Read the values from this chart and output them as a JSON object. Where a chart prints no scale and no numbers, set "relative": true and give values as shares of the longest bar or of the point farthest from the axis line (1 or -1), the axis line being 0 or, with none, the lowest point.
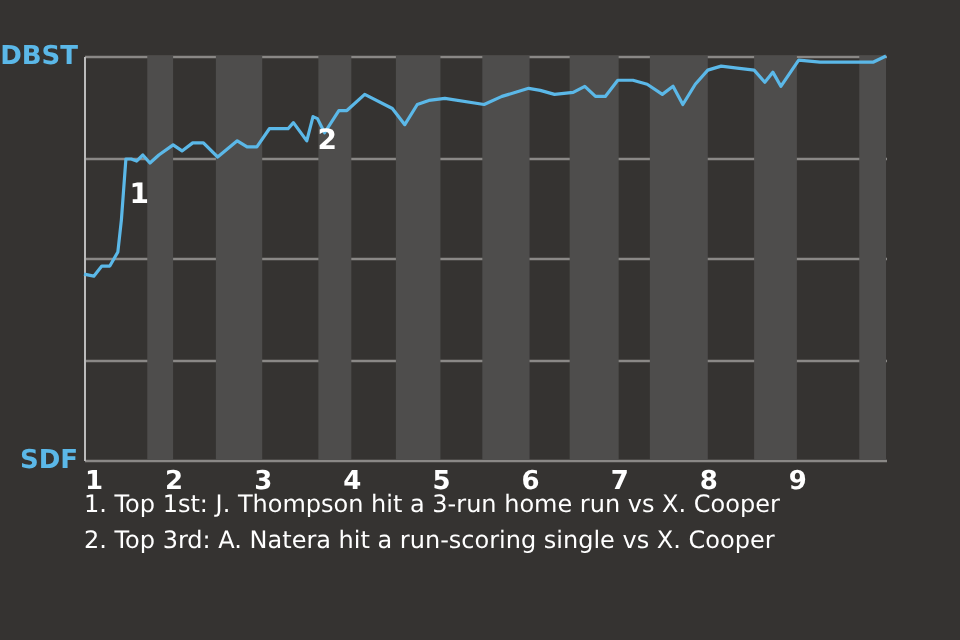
{
  "chart_data": {
    "type": "line",
    "relative": true,
    "x": [
      1.0,
      1.11,
      1.2,
      1.29,
      1.38,
      1.42,
      1.47,
      1.53,
      1.59,
      1.66,
      1.74,
      1.84,
      2.0,
      2.1,
      2.22,
      2.34,
      2.5,
      2.72,
      2.83,
      2.94,
      3.08,
      3.29,
      3.35,
      3.5,
      3.57,
      3.62,
      3.7,
      3.86,
      3.95,
      4.15,
      4.46,
      4.6,
      4.74,
      4.87,
      5.05,
      5.49,
      5.69,
      5.99,
      6.12,
      6.28,
      6.49,
      6.62,
      6.74,
      6.85,
      6.99,
      7.16,
      7.32,
      7.49,
      7.61,
      7.72,
      7.86,
      8.0,
      8.15,
      8.33,
      8.52,
      8.64,
      8.73,
      8.82,
      9.02,
      9.26,
      9.86,
      10.0
    ],
    "series": [
      {
        "color": "#5bb8e8",
        "values": [
          0.46,
          0.455,
          0.48,
          0.48,
          0.515,
          0.595,
          0.745,
          0.745,
          0.74,
          0.755,
          0.735,
          0.755,
          0.78,
          0.765,
          0.785,
          0.785,
          0.75,
          0.79,
          0.775,
          0.775,
          0.82,
          0.82,
          0.835,
          0.79,
          0.85,
          0.845,
          0.81,
          0.865,
          0.865,
          0.905,
          0.87,
          0.83,
          0.88,
          0.89,
          0.895,
          0.88,
          0.9,
          0.92,
          0.915,
          0.905,
          0.91,
          0.925,
          0.9,
          0.9,
          0.94,
          0.94,
          0.93,
          0.905,
          0.925,
          0.88,
          0.93,
          0.965,
          0.975,
          0.97,
          0.965,
          0.935,
          0.96,
          0.925,
          0.99,
          0.985,
          0.985,
          1
        ]
      }
    ],
    "xlim": [
      1,
      10
    ],
    "xticks": [
      1,
      2,
      3,
      4,
      5,
      6,
      7,
      8,
      9
    ],
    "marker": "none",
    "line_style": "solid",
    "grid": "y",
    "bands": [
      {
        "axis": "x",
        "from": 1.71,
        "to": 2.0,
        "color": "#4e4d4c"
      },
      {
        "axis": "x",
        "from": 2.48,
        "to": 3.0,
        "color": "#4e4d4c"
      },
      {
        "axis": "x",
        "from": 3.63,
        "to": 4.0,
        "color": "#4e4d4c"
      },
      {
        "axis": "x",
        "from": 4.5,
        "to": 5.0,
        "color": "#4e4d4c"
      },
      {
        "axis": "x",
        "from": 5.47,
        "to": 6.0,
        "color": "#4e4d4c"
      },
      {
        "axis": "x",
        "from": 6.45,
        "to": 7.0,
        "color": "#4e4d4c"
      },
      {
        "axis": "x",
        "from": 7.35,
        "to": 8.0,
        "color": "#4e4d4c"
      },
      {
        "axis": "x",
        "from": 8.52,
        "to": 9.0,
        "color": "#4e4d4c"
      },
      {
        "axis": "x",
        "from": 9.7,
        "to": 10.0,
        "color": "#4e4d4c"
      }
    ],
    "annotations": [
      "DBST",
      "SDF",
      {
        "text": "1",
        "x": 1.44,
        "y": 0.655
      },
      {
        "text": "2",
        "x": 3.55,
        "y": 0.79
      },
      "1. Top 1st: J. Thompson hit a 3-run home run vs X. Cooper",
      "2. Top 3rd: A. Natera hit a run-scoring single vs X. Cooper"
    ]
  }
}
